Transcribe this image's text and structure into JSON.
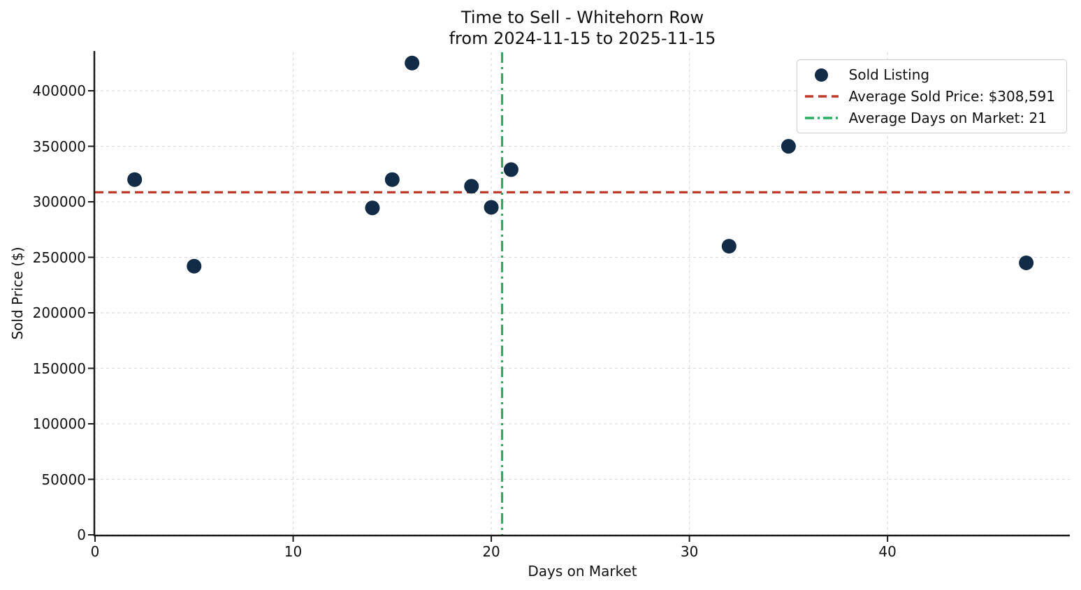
{
  "figure": {
    "title_line1": "Time to Sell - Whitehorn Row",
    "title_line2": "from 2024-11-15 to 2025-11-15"
  },
  "chart_data": {
    "type": "scatter",
    "title": "Time to Sell - Whitehorn Row",
    "subtitle": "from 2024-11-15 to 2025-11-15",
    "xlabel": "Days on Market",
    "ylabel": "Sold Price ($)",
    "xlim": [
      0,
      49.2
    ],
    "ylim": [
      0,
      434600
    ],
    "x_ticks": [
      0,
      10,
      20,
      30,
      40
    ],
    "y_ticks": [
      0,
      50000,
      100000,
      150000,
      200000,
      250000,
      300000,
      350000,
      400000
    ],
    "grid": true,
    "points": [
      [
        2,
        320000
      ],
      [
        5,
        242000
      ],
      [
        14,
        294500
      ],
      [
        15,
        320000
      ],
      [
        16,
        425000
      ],
      [
        19,
        314000
      ],
      [
        20,
        295000
      ],
      [
        21,
        329000
      ],
      [
        32,
        260000
      ],
      [
        35,
        350000
      ],
      [
        47,
        245000
      ]
    ],
    "average_sold_price": 308591,
    "average_days_on_market": 21,
    "legend": {
      "position": "upper right",
      "items": [
        {
          "label": "Sold Listing",
          "marker": "dot"
        },
        {
          "label": "Average Sold Price: $308,591",
          "marker": "dashed-line"
        },
        {
          "label": "Average Days on Market: 21",
          "marker": "dashdot-line"
        }
      ]
    },
    "colors": {
      "point": "#122c47",
      "avg_price_line": "#c0392b",
      "avg_days_line": "#2aad60",
      "grid": "#d9d9d9",
      "axis": "#1a1a1a"
    }
  }
}
